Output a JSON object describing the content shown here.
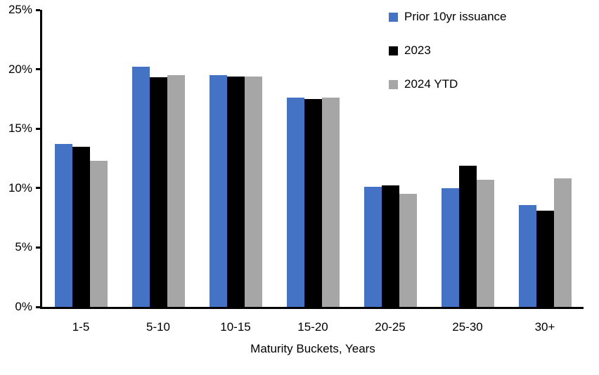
{
  "chart_data": {
    "type": "bar",
    "title": "",
    "xlabel": "Maturity Buckets, Years",
    "ylabel": "",
    "categories": [
      "1-5",
      "5-10",
      "10-15",
      "15-20",
      "20-25",
      "25-30",
      "30+"
    ],
    "series": [
      {
        "name": "Prior 10yr issuance",
        "color": "#4472C4",
        "values": [
          13.7,
          20.2,
          19.5,
          17.6,
          10.1,
          10.0,
          8.6
        ]
      },
      {
        "name": "2023",
        "color": "#000000",
        "values": [
          13.5,
          19.3,
          19.4,
          17.5,
          10.2,
          11.9,
          8.1
        ]
      },
      {
        "name": "2024 YTD",
        "color": "#A6A6A6",
        "values": [
          12.3,
          19.5,
          19.4,
          17.6,
          9.5,
          10.7,
          10.8
        ]
      }
    ],
    "ylim": [
      0,
      25
    ],
    "ytick_step": 5,
    "ytick_suffix": "%",
    "grid": false,
    "legend_position": "top-right",
    "axis_color": "#000000"
  }
}
